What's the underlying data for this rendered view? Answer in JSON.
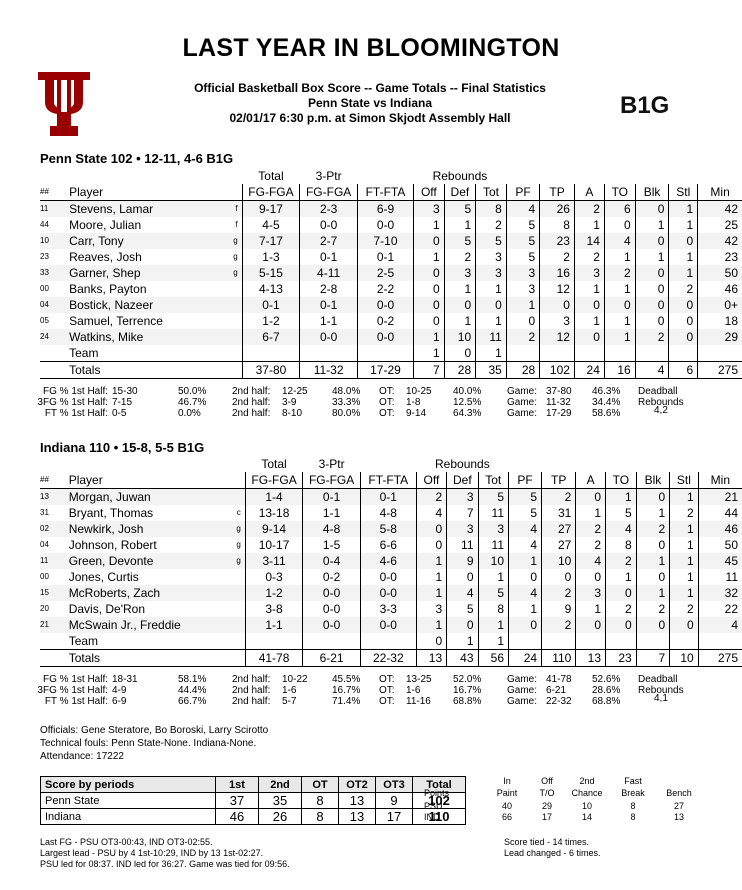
{
  "header": {
    "title": "LAST YEAR IN BLOOMINGTON",
    "line1": "Official Basketball Box Score -- Game Totals -- Final Statistics",
    "line2": "Penn State vs Indiana",
    "line3": "02/01/17 6:30 p.m. at Simon Skjodt Assembly Hall",
    "b1g_logo": "B1G"
  },
  "columns": {
    "total": "Total",
    "threeptr": "3-Ptr",
    "rebounds": "Rebounds",
    "num": "##",
    "player": "Player",
    "fg": "FG-FGA",
    "tp3": "FG-FGA",
    "ft": "FT-FTA",
    "off": "Off",
    "def": "Def",
    "tot": "Tot",
    "pf": "PF",
    "tp": "TP",
    "a": "A",
    "to": "TO",
    "blk": "Blk",
    "stl": "Stl",
    "min": "Min"
  },
  "teams": [
    {
      "title": "Penn State 102 • 12-11, 4-6 B1G",
      "players": [
        {
          "num": "11",
          "name": "Stevens, Lamar",
          "pos": "f",
          "fg": "9-17",
          "tp3": "2-3",
          "ft": "6-9",
          "off": "3",
          "def": "5",
          "tot": "8",
          "pf": "4",
          "tp": "26",
          "a": "2",
          "to": "6",
          "blk": "0",
          "stl": "1",
          "min": "42"
        },
        {
          "num": "44",
          "name": "Moore, Julian",
          "pos": "f",
          "fg": "4-5",
          "tp3": "0-0",
          "ft": "0-0",
          "off": "1",
          "def": "1",
          "tot": "2",
          "pf": "5",
          "tp": "8",
          "a": "1",
          "to": "0",
          "blk": "1",
          "stl": "1",
          "min": "25"
        },
        {
          "num": "10",
          "name": "Carr, Tony",
          "pos": "g",
          "fg": "7-17",
          "tp3": "2-7",
          "ft": "7-10",
          "off": "0",
          "def": "5",
          "tot": "5",
          "pf": "5",
          "tp": "23",
          "a": "14",
          "to": "4",
          "blk": "0",
          "stl": "0",
          "min": "42"
        },
        {
          "num": "23",
          "name": "Reaves, Josh",
          "pos": "g",
          "fg": "1-3",
          "tp3": "0-1",
          "ft": "0-1",
          "off": "1",
          "def": "2",
          "tot": "3",
          "pf": "5",
          "tp": "2",
          "a": "2",
          "to": "1",
          "blk": "1",
          "stl": "1",
          "min": "23"
        },
        {
          "num": "33",
          "name": "Garner, Shep",
          "pos": "g",
          "fg": "5-15",
          "tp3": "4-11",
          "ft": "2-5",
          "off": "0",
          "def": "3",
          "tot": "3",
          "pf": "3",
          "tp": "16",
          "a": "3",
          "to": "2",
          "blk": "0",
          "stl": "1",
          "min": "50"
        },
        {
          "num": "00",
          "name": "Banks, Payton",
          "pos": "",
          "fg": "4-13",
          "tp3": "2-8",
          "ft": "2-2",
          "off": "0",
          "def": "1",
          "tot": "1",
          "pf": "3",
          "tp": "12",
          "a": "1",
          "to": "1",
          "blk": "0",
          "stl": "2",
          "min": "46"
        },
        {
          "num": "04",
          "name": "Bostick, Nazeer",
          "pos": "",
          "fg": "0-1",
          "tp3": "0-1",
          "ft": "0-0",
          "off": "0",
          "def": "0",
          "tot": "0",
          "pf": "1",
          "tp": "0",
          "a": "0",
          "to": "0",
          "blk": "0",
          "stl": "0",
          "min": "0+"
        },
        {
          "num": "05",
          "name": "Samuel, Terrence",
          "pos": "",
          "fg": "1-2",
          "tp3": "1-1",
          "ft": "0-2",
          "off": "0",
          "def": "1",
          "tot": "1",
          "pf": "0",
          "tp": "3",
          "a": "1",
          "to": "1",
          "blk": "0",
          "stl": "0",
          "min": "18"
        },
        {
          "num": "24",
          "name": "Watkins, Mike",
          "pos": "",
          "fg": "6-7",
          "tp3": "0-0",
          "ft": "0-0",
          "off": "1",
          "def": "10",
          "tot": "11",
          "pf": "2",
          "tp": "12",
          "a": "0",
          "to": "1",
          "blk": "2",
          "stl": "0",
          "min": "29"
        },
        {
          "num": "",
          "name": "Team",
          "pos": "",
          "fg": "",
          "tp3": "",
          "ft": "",
          "off": "1",
          "def": "0",
          "tot": "1",
          "pf": "",
          "tp": "",
          "a": "",
          "to": "",
          "blk": "",
          "stl": "",
          "min": ""
        }
      ],
      "totals": {
        "label": "Totals",
        "fg": "37-80",
        "tp3": "11-32",
        "ft": "17-29",
        "off": "7",
        "def": "28",
        "tot": "35",
        "pf": "28",
        "tp": "102",
        "a": "24",
        "to": "16",
        "blk": "4",
        "stl": "6",
        "min": "275"
      },
      "pct": [
        {
          "lbl": "FG % 1st Half:",
          "h1": "15-30",
          "p1": "50.0%",
          "h2l": "2nd half:",
          "h2": "12-25",
          "p2": "48.0%",
          "otl": "OT:",
          "ot": "10-25",
          "p3": "40.0%",
          "gl": "Game:",
          "g": "37-80",
          "p4": "46.3%"
        },
        {
          "lbl": "3FG % 1st Half:",
          "h1": "7-15",
          "p1": "46.7%",
          "h2l": "2nd half:",
          "h2": "3-9",
          "p2": "33.3%",
          "otl": "OT:",
          "ot": "1-8",
          "p3": "12.5%",
          "gl": "Game:",
          "g": "11-32",
          "p4": "34.4%"
        },
        {
          "lbl": "FT % 1st Half:",
          "h1": "0-5",
          "p1": "0.0%",
          "h2l": "2nd half:",
          "h2": "8-10",
          "p2": "80.0%",
          "otl": "OT:",
          "ot": "9-14",
          "p3": "64.3%",
          "gl": "Game:",
          "g": "17-29",
          "p4": "58.6%"
        }
      ],
      "deadball": {
        "l1": "Deadball",
        "l2": "Rebounds",
        "v": "4,2"
      }
    },
    {
      "title": "Indiana 110 • 15-8, 5-5 B1G",
      "players": [
        {
          "num": "13",
          "name": "Morgan, Juwan",
          "pos": "",
          "fg": "1-4",
          "tp3": "0-1",
          "ft": "0-1",
          "off": "2",
          "def": "3",
          "tot": "5",
          "pf": "5",
          "tp": "2",
          "a": "0",
          "to": "1",
          "blk": "0",
          "stl": "1",
          "min": "21"
        },
        {
          "num": "31",
          "name": "Bryant, Thomas",
          "pos": "c",
          "fg": "13-18",
          "tp3": "1-1",
          "ft": "4-8",
          "off": "4",
          "def": "7",
          "tot": "11",
          "pf": "5",
          "tp": "31",
          "a": "1",
          "to": "5",
          "blk": "1",
          "stl": "2",
          "min": "44"
        },
        {
          "num": "02",
          "name": "Newkirk, Josh",
          "pos": "g",
          "fg": "9-14",
          "tp3": "4-8",
          "ft": "5-8",
          "off": "0",
          "def": "3",
          "tot": "3",
          "pf": "4",
          "tp": "27",
          "a": "2",
          "to": "4",
          "blk": "2",
          "stl": "1",
          "min": "46"
        },
        {
          "num": "04",
          "name": "Johnson, Robert",
          "pos": "g",
          "fg": "10-17",
          "tp3": "1-5",
          "ft": "6-6",
          "off": "0",
          "def": "11",
          "tot": "11",
          "pf": "4",
          "tp": "27",
          "a": "2",
          "to": "8",
          "blk": "0",
          "stl": "1",
          "min": "50"
        },
        {
          "num": "11",
          "name": "Green, Devonte",
          "pos": "g",
          "fg": "3-11",
          "tp3": "0-4",
          "ft": "4-6",
          "off": "1",
          "def": "9",
          "tot": "10",
          "pf": "1",
          "tp": "10",
          "a": "4",
          "to": "2",
          "blk": "1",
          "stl": "1",
          "min": "45"
        },
        {
          "num": "00",
          "name": "Jones, Curtis",
          "pos": "",
          "fg": "0-3",
          "tp3": "0-2",
          "ft": "0-0",
          "off": "1",
          "def": "0",
          "tot": "1",
          "pf": "0",
          "tp": "0",
          "a": "0",
          "to": "1",
          "blk": "0",
          "stl": "1",
          "min": "11"
        },
        {
          "num": "15",
          "name": "McRoberts, Zach",
          "pos": "",
          "fg": "1-2",
          "tp3": "0-0",
          "ft": "0-0",
          "off": "1",
          "def": "4",
          "tot": "5",
          "pf": "4",
          "tp": "2",
          "a": "3",
          "to": "0",
          "blk": "1",
          "stl": "1",
          "min": "32"
        },
        {
          "num": "20",
          "name": "Davis, De'Ron",
          "pos": "",
          "fg": "3-8",
          "tp3": "0-0",
          "ft": "3-3",
          "off": "3",
          "def": "5",
          "tot": "8",
          "pf": "1",
          "tp": "9",
          "a": "1",
          "to": "2",
          "blk": "2",
          "stl": "2",
          "min": "22"
        },
        {
          "num": "21",
          "name": "McSwain Jr., Freddie",
          "pos": "",
          "fg": "1-1",
          "tp3": "0-0",
          "ft": "0-0",
          "off": "1",
          "def": "0",
          "tot": "1",
          "pf": "0",
          "tp": "2",
          "a": "0",
          "to": "0",
          "blk": "0",
          "stl": "0",
          "min": "4"
        },
        {
          "num": "",
          "name": "Team",
          "pos": "",
          "fg": "",
          "tp3": "",
          "ft": "",
          "off": "0",
          "def": "1",
          "tot": "1",
          "pf": "",
          "tp": "",
          "a": "",
          "to": "",
          "blk": "",
          "stl": "",
          "min": ""
        }
      ],
      "totals": {
        "label": "Totals",
        "fg": "41-78",
        "tp3": "6-21",
        "ft": "22-32",
        "off": "13",
        "def": "43",
        "tot": "56",
        "pf": "24",
        "tp": "110",
        "a": "13",
        "to": "23",
        "blk": "7",
        "stl": "10",
        "min": "275"
      },
      "pct": [
        {
          "lbl": "FG % 1st Half:",
          "h1": "18-31",
          "p1": "58.1%",
          "h2l": "2nd half:",
          "h2": "10-22",
          "p2": "45.5%",
          "otl": "OT:",
          "ot": "13-25",
          "p3": "52.0%",
          "gl": "Game:",
          "g": "41-78",
          "p4": "52.6%"
        },
        {
          "lbl": "3FG % 1st Half:",
          "h1": "4-9",
          "p1": "44.4%",
          "h2l": "2nd half:",
          "h2": "1-6",
          "p2": "16.7%",
          "otl": "OT:",
          "ot": "1-6",
          "p3": "16.7%",
          "gl": "Game:",
          "g": "6-21",
          "p4": "28.6%"
        },
        {
          "lbl": "FT % 1st Half:",
          "h1": "6-9",
          "p1": "66.7%",
          "h2l": "2nd half:",
          "h2": "5-7",
          "p2": "71.4%",
          "otl": "OT:",
          "ot": "11-16",
          "p3": "68.8%",
          "gl": "Game:",
          "g": "22-32",
          "p4": "68.8%"
        }
      ],
      "deadball": {
        "l1": "Deadball",
        "l2": "Rebounds",
        "v": "4,1"
      }
    }
  ],
  "notes": {
    "officials": "Officials: Gene Steratore, Bo Boroski, Larry Scirotto",
    "technicals": "Technical fouls: Penn State-None. Indiana-None.",
    "attendance": "Attendance: 17222"
  },
  "periods": {
    "header": [
      "Score by periods",
      "1st",
      "2nd",
      "OT",
      "OT2",
      "OT3",
      "Total"
    ],
    "rows": [
      [
        "Penn State",
        "37",
        "35",
        "8",
        "13",
        "9",
        "102"
      ],
      [
        "Indiana",
        "46",
        "26",
        "8",
        "13",
        "17",
        "110"
      ]
    ]
  },
  "misc": {
    "head1": [
      "",
      "In",
      "Off",
      "2nd",
      "Fast",
      ""
    ],
    "head2": [
      "Points",
      "Paint",
      "T/O",
      "Chance",
      "Break",
      "Bench"
    ],
    "rows": [
      [
        "PSU",
        "40",
        "29",
        "10",
        "8",
        "27"
      ],
      [
        "IND",
        "66",
        "17",
        "14",
        "8",
        "13"
      ]
    ]
  },
  "footer": {
    "last_fg": "Last FG - PSU OT3-00:43, IND OT3-02:55.",
    "largest_lead": "Largest lead - PSU by 4 1st-10:29, IND by 13 1st-02:27.",
    "led_for": "PSU led for 08:37. IND led for 36:27. Game  was tied for 09:56.",
    "score_tied": "Score tied - 14 times.",
    "lead_changed": "Lead changed - 6 times."
  },
  "colors": {
    "iu_crimson": "#990000",
    "b1g_blue": "#1f4e9c",
    "shade": "#f3f3f3"
  }
}
